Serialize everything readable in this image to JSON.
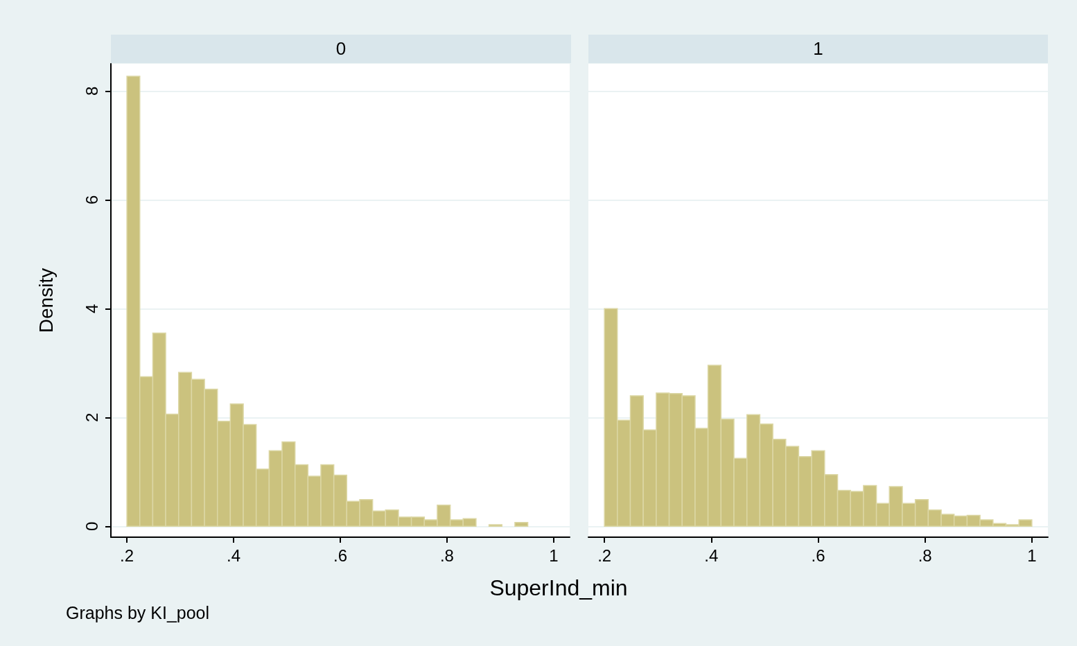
{
  "chart_data": [
    {
      "type": "histogram",
      "title": "0",
      "xlabel": "SuperInd_min",
      "ylabel": "Density",
      "annotations": [
        "Graphs by KI_pool"
      ],
      "color": "#cbc27e",
      "bins": [
        0.2,
        0.2242,
        0.2485,
        0.2727,
        0.297,
        0.3212,
        0.3455,
        0.3697,
        0.3939,
        0.4182,
        0.4424,
        0.4667,
        0.4909,
        0.5152,
        0.5394,
        0.5636,
        0.5879,
        0.6121,
        0.6364,
        0.6606,
        0.6848,
        0.7091,
        0.7333,
        0.7576,
        0.7818,
        0.8061,
        0.8303,
        0.8545,
        0.8788,
        0.903,
        0.9273,
        0.9515
      ],
      "values": [
        8.27,
        2.75,
        3.55,
        2.06,
        2.83,
        2.7,
        2.52,
        1.93,
        2.25,
        1.87,
        1.05,
        1.39,
        1.55,
        1.13,
        0.92,
        1.13,
        0.94,
        0.46,
        0.49,
        0.28,
        0.3,
        0.17,
        0.17,
        0.12,
        0.39,
        0.12,
        0.14,
        0,
        0.03,
        0,
        0.07
      ],
      "xlim": [
        0.17,
        1.03
      ],
      "xticks": [
        {
          "value": 0.2,
          "label": ".2"
        },
        {
          "value": 0.4,
          "label": ".4"
        },
        {
          "value": 0.6,
          "label": ".6"
        },
        {
          "value": 0.8,
          "label": ".8"
        },
        1
      ],
      "ylim": [
        -0.2,
        8.5
      ],
      "yticks": [
        0,
        2,
        4,
        6,
        8
      ],
      "grid": "y"
    },
    {
      "type": "histogram",
      "title": "1",
      "color": "#cbc27e",
      "bins": [
        0.2,
        0.2242,
        0.2485,
        0.2727,
        0.297,
        0.3212,
        0.3455,
        0.3697,
        0.3939,
        0.4182,
        0.4424,
        0.4667,
        0.4909,
        0.5152,
        0.5394,
        0.5636,
        0.5879,
        0.6121,
        0.6364,
        0.6606,
        0.6848,
        0.7091,
        0.7333,
        0.7576,
        0.7818,
        0.8061,
        0.8303,
        0.8545,
        0.8788,
        0.903,
        0.9273,
        0.9515,
        0.9758,
        1.0
      ],
      "values": [
        4.0,
        1.95,
        2.4,
        1.77,
        2.45,
        2.44,
        2.4,
        1.8,
        2.96,
        1.97,
        1.25,
        2.05,
        1.88,
        1.6,
        1.47,
        1.28,
        1.39,
        0.95,
        0.66,
        0.64,
        0.75,
        0.42,
        0.73,
        0.42,
        0.49,
        0.3,
        0.22,
        0.19,
        0.2,
        0.12,
        0.05,
        0.03,
        0.12
      ],
      "xlim": [
        0.17,
        1.03
      ],
      "xticks": [
        {
          "value": 0.2,
          "label": ".2"
        },
        {
          "value": 0.4,
          "label": ".4"
        },
        {
          "value": 0.6,
          "label": ".6"
        },
        {
          "value": 0.8,
          "label": ".8"
        },
        1
      ],
      "ylim": [
        -0.2,
        8.5
      ],
      "yticks": [
        0,
        2,
        4,
        6,
        8
      ],
      "grid": "y",
      "tick_labels": "x"
    }
  ]
}
